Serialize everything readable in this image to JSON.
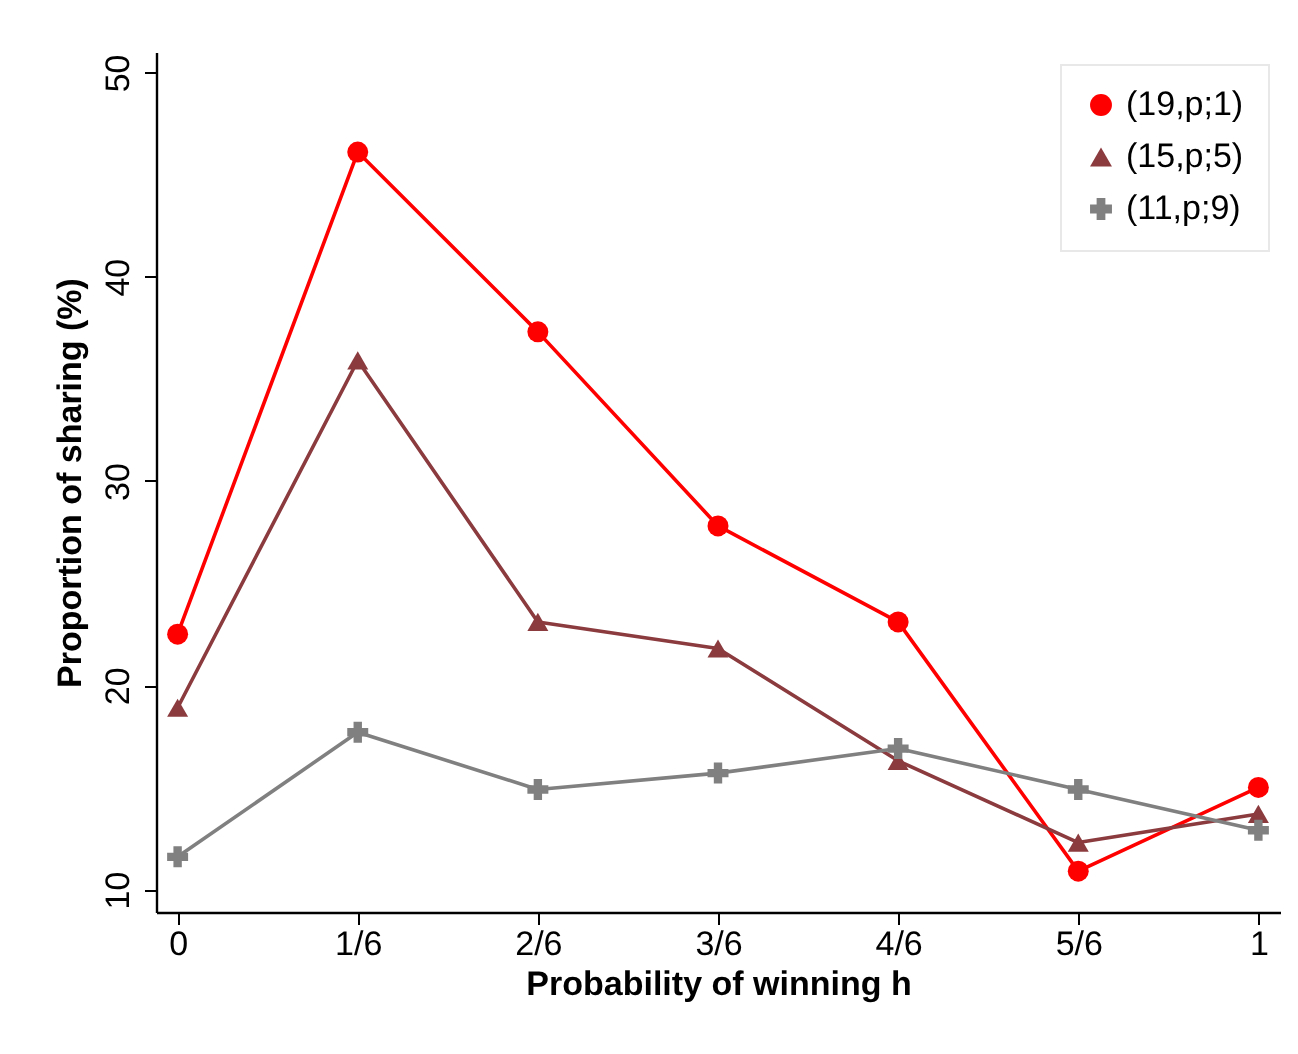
{
  "chart_data": {
    "type": "line",
    "xlabel": "Probability of winning h",
    "ylabel": "Proportion of sharing (%)",
    "categories": [
      "0",
      "1/6",
      "2/6",
      "3/6",
      "4/6",
      "5/6",
      "1"
    ],
    "series": [
      {
        "name": "(19,p;1)",
        "color": "#ff0000",
        "marker": "circle",
        "values": [
          22.5,
          46.1,
          37.3,
          27.8,
          23.1,
          10.9,
          15.0
        ]
      },
      {
        "name": "(15,p;5)",
        "color": "#8b3a3e",
        "marker": "triangle",
        "values": [
          18.9,
          35.9,
          23.1,
          21.8,
          16.3,
          12.3,
          13.7
        ]
      },
      {
        "name": "(11,p;9)",
        "color": "#808080",
        "marker": "cross",
        "values": [
          11.6,
          17.7,
          14.9,
          15.7,
          16.9,
          14.9,
          12.9
        ]
      }
    ],
    "ylim": [
      8.9,
      51
    ],
    "yticks": [
      10,
      20,
      30,
      40,
      50
    ],
    "grid": false,
    "legend": "top right",
    "line_style": "solid"
  }
}
